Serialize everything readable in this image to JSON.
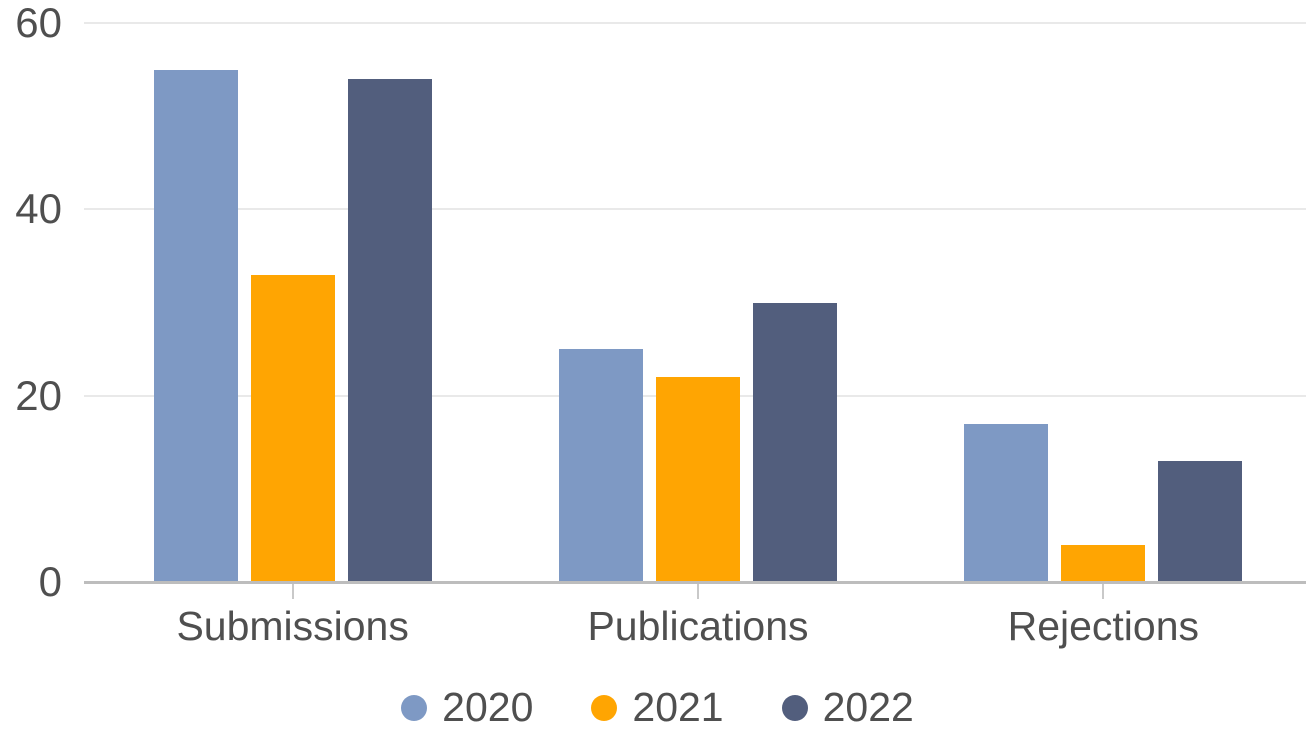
{
  "chart_data": {
    "type": "bar",
    "title": "",
    "xlabel": "",
    "ylabel": "",
    "categories": [
      "Submissions",
      "Publications",
      "Rejections"
    ],
    "series": [
      {
        "name": "2020",
        "color": "#7e99c4",
        "values": [
          55,
          25,
          17
        ]
      },
      {
        "name": "2021",
        "color": "#ffa502",
        "values": [
          33,
          22,
          4
        ]
      },
      {
        "name": "2022",
        "color": "#525e7d",
        "values": [
          54,
          30,
          13
        ]
      }
    ],
    "ylim": [
      0,
      60
    ],
    "yticks": [
      0,
      20,
      40,
      60
    ],
    "ytick_labels": [
      "0",
      "20",
      "40",
      "60"
    ],
    "grid": "horizontal",
    "legend_position": "bottom-center"
  },
  "colors": {
    "background": "#ffffff",
    "gridline": "#e9e9e9",
    "axis_line": "#bdbdbd",
    "tick": "#c9c9c9",
    "text": "#4f4f4f"
  }
}
